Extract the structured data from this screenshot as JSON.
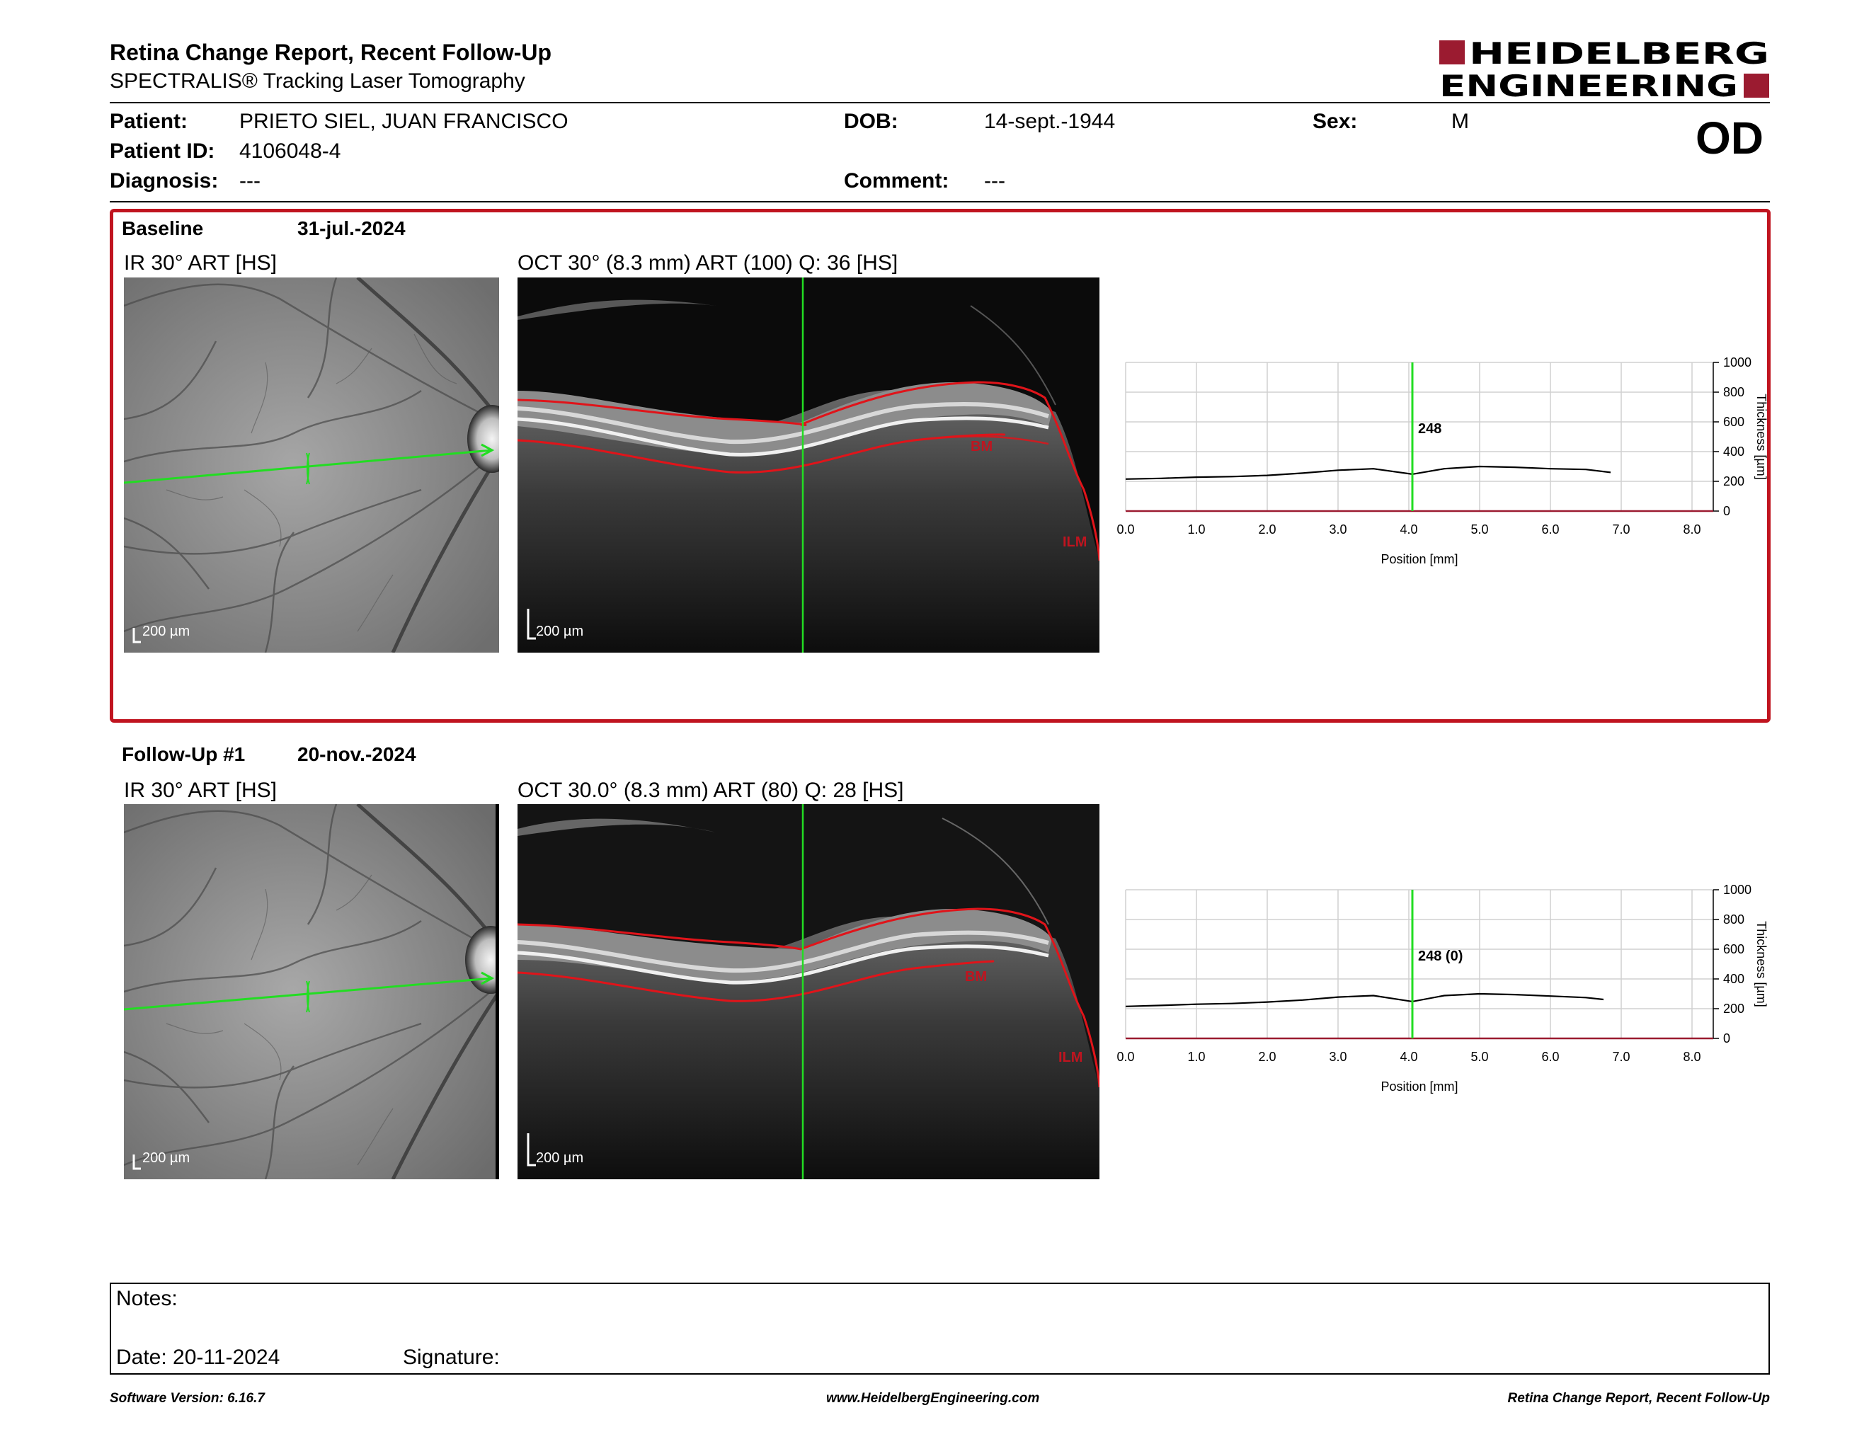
{
  "header": {
    "title": "Retina Change Report, Recent Follow-Up",
    "subtitle": "SPECTRALIS® Tracking Laser Tomography",
    "logo_line1": "HEIDELBERG",
    "logo_line2": "ENGINEERING",
    "eye": "OD"
  },
  "patient": {
    "name_label": "Patient:",
    "name": "PRIETO SIEL, JUAN FRANCISCO",
    "id_label": "Patient ID:",
    "id": "4106048-4",
    "diagnosis_label": "Diagnosis:",
    "diagnosis": "---",
    "dob_label": "DOB:",
    "dob": "14-sept.-1944",
    "comment_label": "Comment:",
    "comment": "---",
    "sex_label": "Sex:",
    "sex": "M"
  },
  "baseline": {
    "label": "Baseline",
    "date": "31-jul.-2024",
    "ir_title": "IR 30° ART [HS]",
    "oct_title": "OCT 30° (8.3 mm) ART (100) Q: 36 [HS]",
    "scale": "200 µm",
    "bm_label": "BM",
    "ilm_label": "ILM",
    "thickness_marker": "248"
  },
  "followup": {
    "label": "Follow-Up #1",
    "date": "20-nov.-2024",
    "ir_title": "IR 30° ART [HS]",
    "oct_title": "OCT 30.0° (8.3 mm) ART (80) Q: 28 [HS]",
    "scale": "200 µm",
    "bm_label": "BM",
    "ilm_label": "ILM",
    "thickness_marker": "248 (0)"
  },
  "chart_data": [
    {
      "type": "line",
      "xlabel": "Position [mm]",
      "ylabel": "Thickness [µm]",
      "xlim": [
        0,
        8.3
      ],
      "ylim": [
        0,
        1000
      ],
      "x_ticks": [
        "0.0",
        "1.0",
        "2.0",
        "3.0",
        "4.0",
        "5.0",
        "6.0",
        "7.0",
        "8.0"
      ],
      "y_ticks": [
        "0",
        "200",
        "400",
        "600",
        "800",
        "1000"
      ],
      "marker_x": 4.05,
      "marker_label": "248",
      "series": [
        {
          "x": [
            0.0,
            0.5,
            1.0,
            1.5,
            2.0,
            2.5,
            3.0,
            3.5,
            4.05,
            4.5,
            5.0,
            5.5,
            6.0,
            6.5,
            6.85
          ],
          "y": [
            215,
            220,
            228,
            232,
            240,
            255,
            275,
            285,
            248,
            285,
            300,
            295,
            285,
            280,
            260
          ]
        }
      ]
    },
    {
      "type": "line",
      "xlabel": "Position [mm]",
      "ylabel": "Thickness [µm]",
      "xlim": [
        0,
        8.3
      ],
      "ylim": [
        0,
        1000
      ],
      "x_ticks": [
        "0.0",
        "1.0",
        "2.0",
        "3.0",
        "4.0",
        "5.0",
        "6.0",
        "7.0",
        "8.0"
      ],
      "y_ticks": [
        "0",
        "200",
        "400",
        "600",
        "800",
        "1000"
      ],
      "marker_x": 4.05,
      "marker_label": "248 (0)",
      "series": [
        {
          "x": [
            0.0,
            0.5,
            1.0,
            1.5,
            2.0,
            2.5,
            3.0,
            3.5,
            4.05,
            4.5,
            5.0,
            5.5,
            6.0,
            6.5,
            6.75
          ],
          "y": [
            215,
            222,
            230,
            235,
            245,
            258,
            278,
            288,
            248,
            288,
            300,
            295,
            285,
            275,
            262
          ]
        }
      ]
    }
  ],
  "notes": {
    "notes_label": "Notes:",
    "date_label": "Date: 20-11-2024",
    "signature_label": "Signature:"
  },
  "footer": {
    "software": "Software Version: 6.16.7",
    "website": "www.HeidelbergEngineering.com",
    "report": "Retina Change Report, Recent Follow-Up"
  },
  "colors": {
    "accent_red": "#c0141f",
    "logo_red": "#9b1b30",
    "scan_green": "#22dd22",
    "segmentation_red": "#e0141a"
  }
}
